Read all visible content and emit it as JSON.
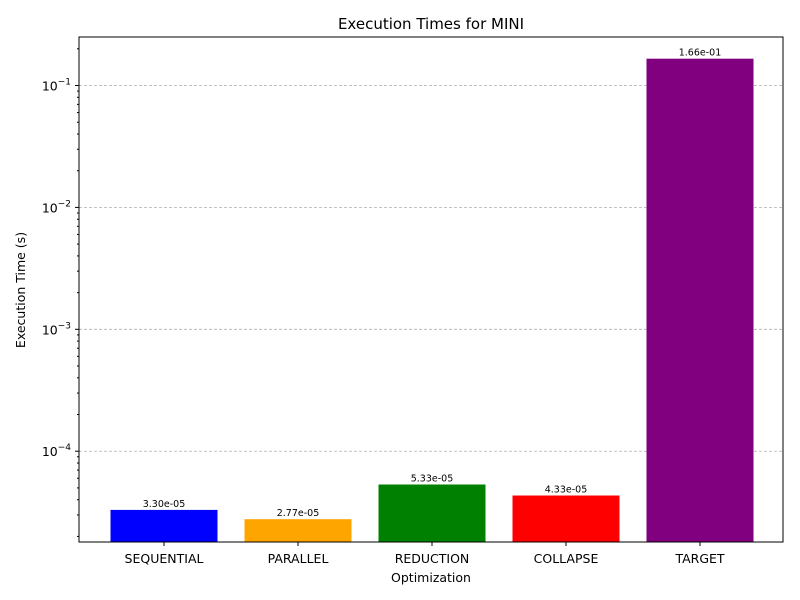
{
  "chart_data": {
    "type": "bar",
    "title": "Execution Times for MINI",
    "xlabel": "Optimization",
    "ylabel": "Execution Time (s)",
    "yscale": "log",
    "ylim": [
      1.8e-05,
      0.25
    ],
    "grid": "y-major",
    "categories": [
      "SEQUENTIAL",
      "PARALLEL",
      "REDUCTION",
      "COLLAPSE",
      "TARGET"
    ],
    "values": [
      3.3e-05,
      2.77e-05,
      5.33e-05,
      4.33e-05,
      0.166
    ],
    "data_labels": [
      "3.30e-05",
      "2.77e-05",
      "5.33e-05",
      "4.33e-05",
      "1.66e-01"
    ],
    "colors": [
      "#0000ff",
      "#ffa500",
      "#008000",
      "#ff0000",
      "#800080"
    ],
    "yticks": [
      {
        "base": "10",
        "exp": "−4",
        "value": 0.0001
      },
      {
        "base": "10",
        "exp": "−3",
        "value": 0.001
      },
      {
        "base": "10",
        "exp": "−2",
        "value": 0.01
      },
      {
        "base": "10",
        "exp": "−1",
        "value": 0.1
      }
    ]
  }
}
